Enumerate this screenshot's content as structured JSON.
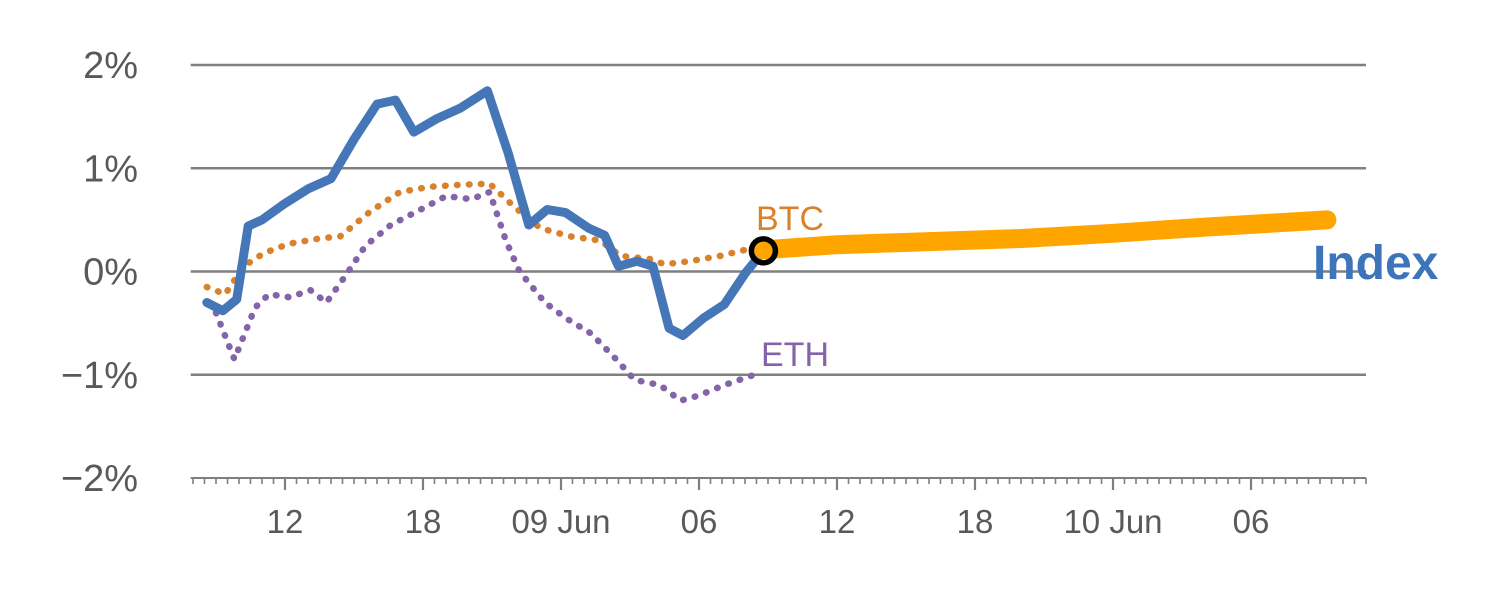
{
  "chart_data": {
    "type": "line",
    "title": "",
    "xlabel": "",
    "ylabel": "",
    "x_unit": "hours since 08 Jun 00:00",
    "xlim": [
      7.9,
      59.0
    ],
    "ylim": [
      -2.0,
      2.0
    ],
    "grid": "horizontal",
    "legend_position": "inline-labels",
    "colors": {
      "grid": "#7f7f7f",
      "axis_text": "#595959",
      "index_line": "#4577b8",
      "btc_line": "#d9822b",
      "eth_line": "#8464a8",
      "forecast_band": "#ffa500",
      "marker": "#000000"
    },
    "y_ticks": [
      {
        "v": 2,
        "label": "2%"
      },
      {
        "v": 1,
        "label": "1%"
      },
      {
        "v": 0,
        "label": "0%"
      },
      {
        "v": -1,
        "label": "−1%"
      },
      {
        "v": -2,
        "label": "−2%"
      }
    ],
    "x_ticks": [
      {
        "t": 12,
        "label": "12"
      },
      {
        "t": 18,
        "label": "18"
      },
      {
        "t": 24,
        "label": "09 Jun"
      },
      {
        "t": 30,
        "label": "06"
      },
      {
        "t": 36,
        "label": "12"
      },
      {
        "t": 42,
        "label": "18"
      },
      {
        "t": 48,
        "label": "10 Jun"
      },
      {
        "t": 54,
        "label": "06"
      }
    ],
    "series": [
      {
        "name": "ETH",
        "color": "#8464a8",
        "style": "dotted",
        "width": 6.5,
        "points": [
          [
            9.0,
            -0.4
          ],
          [
            9.8,
            -0.85
          ],
          [
            10.7,
            -0.35
          ],
          [
            11.3,
            -0.22
          ],
          [
            12.2,
            -0.25
          ],
          [
            13.1,
            -0.18
          ],
          [
            13.8,
            -0.3
          ],
          [
            14.6,
            -0.05
          ],
          [
            15.5,
            0.25
          ],
          [
            16.6,
            0.45
          ],
          [
            17.9,
            0.6
          ],
          [
            19.0,
            0.73
          ],
          [
            20.1,
            0.7
          ],
          [
            20.9,
            0.77
          ],
          [
            21.6,
            0.3
          ],
          [
            22.2,
            0.0
          ],
          [
            23.3,
            -0.3
          ],
          [
            24.2,
            -0.45
          ],
          [
            25.3,
            -0.6
          ],
          [
            26.4,
            -0.85
          ],
          [
            27.2,
            -1.05
          ],
          [
            28.3,
            -1.1
          ],
          [
            29.2,
            -1.25
          ],
          [
            30.0,
            -1.2
          ],
          [
            31.1,
            -1.1
          ],
          [
            32.4,
            -1.0
          ]
        ]
      },
      {
        "name": "BTC",
        "color": "#d9822b",
        "style": "dotted",
        "width": 6.5,
        "points": [
          [
            8.6,
            -0.15
          ],
          [
            9.4,
            -0.22
          ],
          [
            10.2,
            0.05
          ],
          [
            11.1,
            0.18
          ],
          [
            12.2,
            0.27
          ],
          [
            13.5,
            0.32
          ],
          [
            14.4,
            0.34
          ],
          [
            15.7,
            0.58
          ],
          [
            17.0,
            0.77
          ],
          [
            18.3,
            0.82
          ],
          [
            19.6,
            0.84
          ],
          [
            20.9,
            0.85
          ],
          [
            22.0,
            0.62
          ],
          [
            23.1,
            0.42
          ],
          [
            24.4,
            0.34
          ],
          [
            25.7,
            0.3
          ],
          [
            26.6,
            0.15
          ],
          [
            27.9,
            0.12
          ],
          [
            28.5,
            0.07
          ],
          [
            29.6,
            0.1
          ],
          [
            30.9,
            0.15
          ],
          [
            32.2,
            0.22
          ],
          [
            32.8,
            0.24
          ]
        ]
      },
      {
        "name": "Index",
        "color": "#4577b8",
        "style": "solid",
        "width": 9,
        "points": [
          [
            8.6,
            -0.3
          ],
          [
            9.3,
            -0.38
          ],
          [
            9.9,
            -0.27
          ],
          [
            10.4,
            0.44
          ],
          [
            11.0,
            0.5
          ],
          [
            12.0,
            0.66
          ],
          [
            13.0,
            0.8
          ],
          [
            14.0,
            0.9
          ],
          [
            15.0,
            1.28
          ],
          [
            16.0,
            1.62
          ],
          [
            16.8,
            1.66
          ],
          [
            17.6,
            1.35
          ],
          [
            18.6,
            1.48
          ],
          [
            19.6,
            1.58
          ],
          [
            20.8,
            1.75
          ],
          [
            21.7,
            1.15
          ],
          [
            22.6,
            0.45
          ],
          [
            23.4,
            0.6
          ],
          [
            24.2,
            0.57
          ],
          [
            25.2,
            0.42
          ],
          [
            25.9,
            0.35
          ],
          [
            26.5,
            0.05
          ],
          [
            27.3,
            0.1
          ],
          [
            28.0,
            0.05
          ],
          [
            28.7,
            -0.55
          ],
          [
            29.3,
            -0.62
          ],
          [
            30.2,
            -0.45
          ],
          [
            31.1,
            -0.32
          ],
          [
            32.0,
            -0.02
          ],
          [
            32.8,
            0.2
          ]
        ]
      },
      {
        "name": "Index forecast",
        "color": "#ffa500",
        "style": "solid",
        "width": 19,
        "points": [
          [
            32.8,
            0.21
          ],
          [
            36.0,
            0.26
          ],
          [
            40.0,
            0.29
          ],
          [
            44.0,
            0.32
          ],
          [
            48.0,
            0.37
          ],
          [
            52.0,
            0.43
          ],
          [
            57.3,
            0.5
          ]
        ]
      }
    ],
    "marker": {
      "series": "Index",
      "t": 32.8,
      "v": 0.2,
      "style": "open-circle",
      "color": "#000000"
    },
    "labels": {
      "btc": {
        "text": "BTC",
        "color": "#d9822b"
      },
      "eth": {
        "text": "ETH",
        "color": "#8464a8"
      },
      "index": {
        "text": "Index",
        "color": "#3d74ba"
      }
    }
  }
}
